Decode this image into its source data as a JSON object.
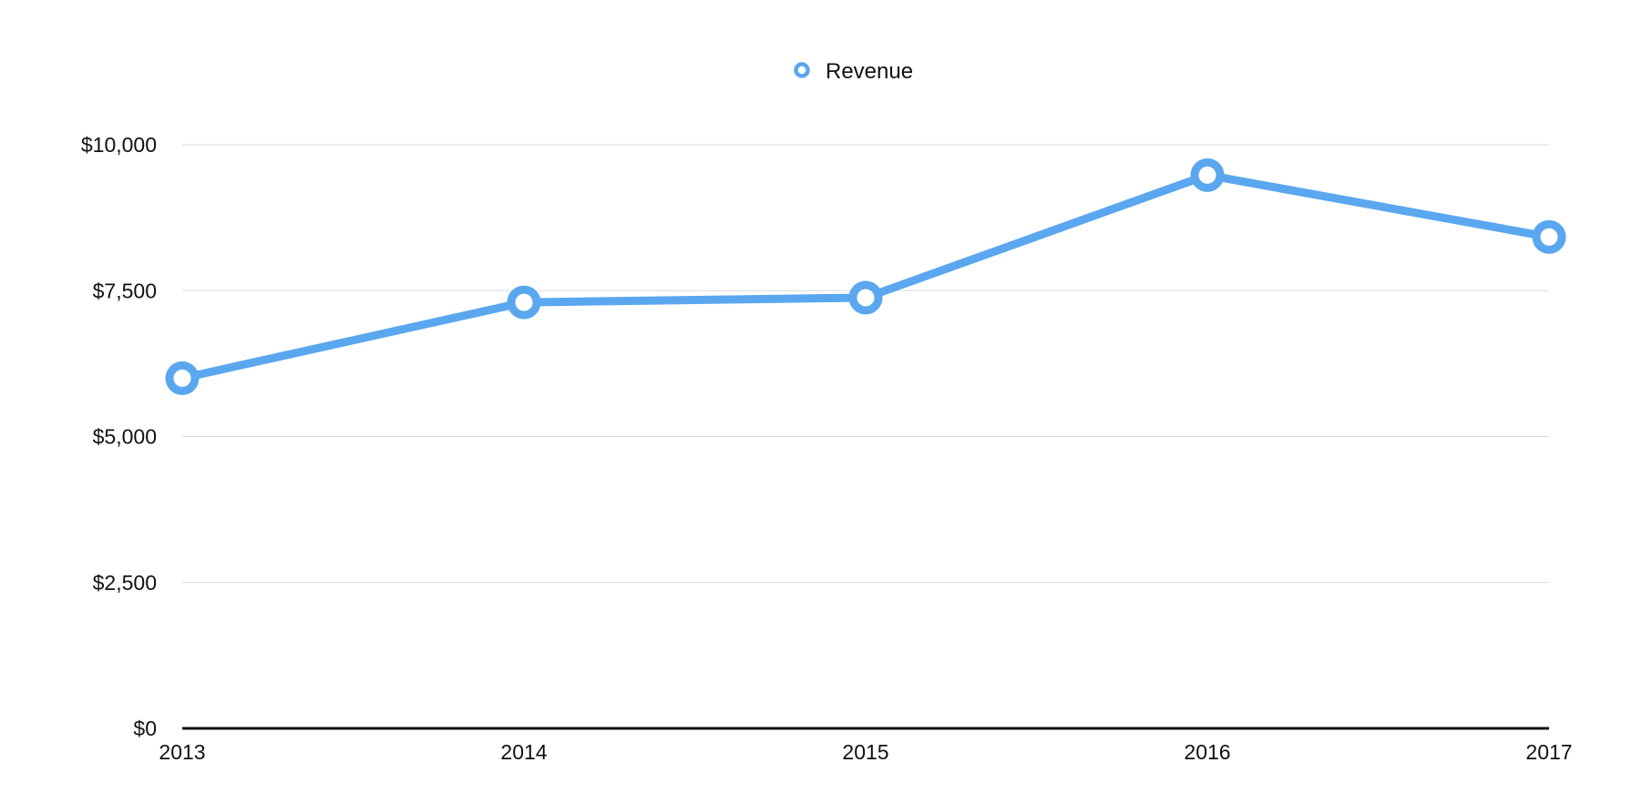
{
  "chart_data": {
    "type": "line",
    "title": "",
    "xlabel": "",
    "ylabel": "",
    "categories": [
      "2013",
      "2014",
      "2015",
      "2016",
      "2017"
    ],
    "series": [
      {
        "name": "Revenue",
        "values": [
          6000,
          7300,
          7380,
          9480,
          8420
        ],
        "color": "#5aa7f0"
      }
    ],
    "ylim": [
      0,
      10000
    ],
    "yticks": [
      0,
      2500,
      5000,
      7500,
      10000
    ],
    "ytick_labels": [
      "$0",
      "$2,500",
      "$5,000",
      "$7,500",
      "$10,000"
    ],
    "grid": true,
    "legend_position": "top-center",
    "marker": "hollow-circle"
  }
}
